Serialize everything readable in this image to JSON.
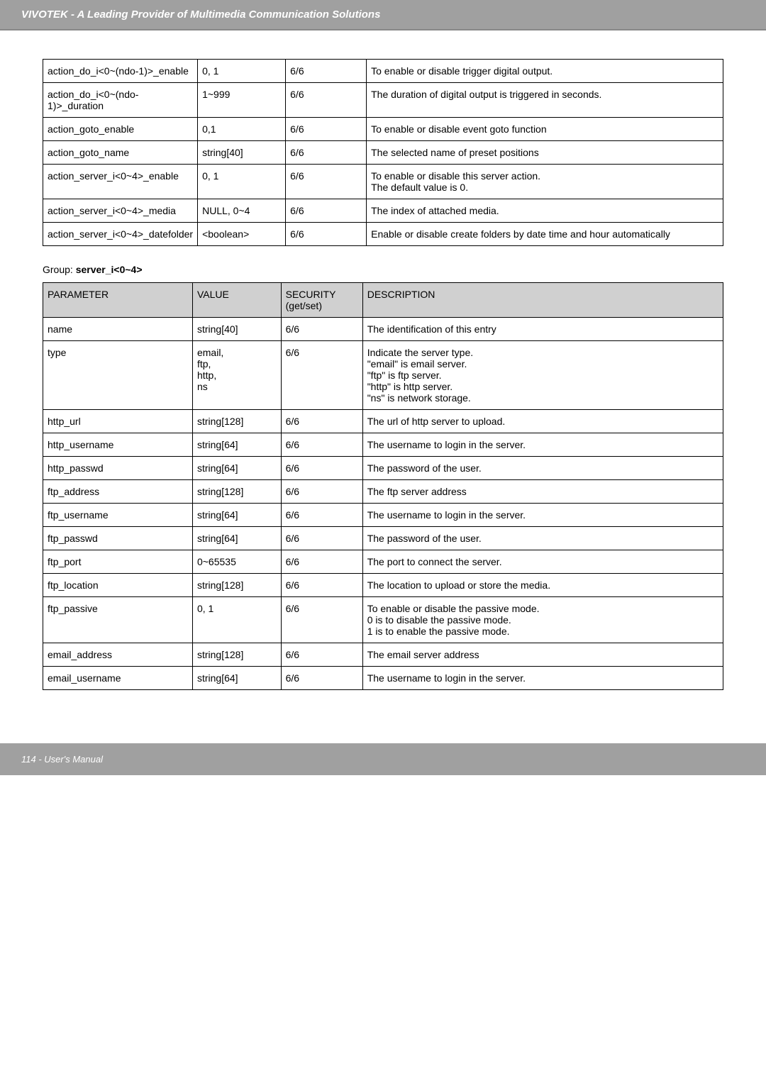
{
  "header": {
    "title": "VIVOTEK - A Leading Provider of Multimedia Communication Solutions"
  },
  "table1": {
    "rows": [
      {
        "param": "action_do_i<0~(ndo-1)>_enable",
        "value": "0, 1",
        "security": "6/6",
        "desc": "To enable or disable trigger digital output."
      },
      {
        "param": "action_do_i<0~(ndo-1)>_duration",
        "value": "1~999",
        "security": "6/6",
        "desc": "The duration of digital output is triggered in seconds."
      },
      {
        "param": "action_goto_enable",
        "value": "0,1",
        "security": "6/6",
        "desc": "To enable or disable event goto function"
      },
      {
        "param": "action_goto_name",
        "value": "string[40]",
        "security": "6/6",
        "desc": "The selected name of preset positions"
      },
      {
        "param": "action_server_i<0~4>_enable",
        "value": "0, 1",
        "security": "6/6",
        "desc": "To enable or disable this server action.\nThe default value is 0."
      },
      {
        "param": "action_server_i<0~4>_media",
        "value": "NULL, 0~4",
        "security": "6/6",
        "desc": "The index of attached media."
      },
      {
        "param": "action_server_i<0~4>_datefolder",
        "value": "<boolean>",
        "security": "6/6",
        "desc": "Enable or disable create folders by date time and hour automatically"
      }
    ]
  },
  "group_label": {
    "prefix": "Group: ",
    "name": "server_i<0~4>"
  },
  "table2": {
    "headers": {
      "param": "PARAMETER",
      "value": "VALUE",
      "security": "SECURITY (get/set)",
      "desc": "DESCRIPTION"
    },
    "rows": [
      {
        "param": "name",
        "value": "string[40]",
        "security": "6/6",
        "desc": "The identification of this entry"
      },
      {
        "param": "type",
        "value": "email,\nftp,\nhttp,\nns",
        "security": "6/6",
        "desc": "Indicate the server type.\n\"email\" is email server.\n\"ftp\" is ftp server.\n\"http\" is http server.\n\"ns\" is network storage."
      },
      {
        "param": "http_url",
        "value": "string[128]",
        "security": "6/6",
        "desc": "The url of http server to upload."
      },
      {
        "param": "http_username",
        "value": "string[64]",
        "security": "6/6",
        "desc": "The username to login in the server."
      },
      {
        "param": "http_passwd",
        "value": "string[64]",
        "security": "6/6",
        "desc": "The password of the user."
      },
      {
        "param": "ftp_address",
        "value": "string[128]",
        "security": "6/6",
        "desc": "The ftp server address"
      },
      {
        "param": "ftp_username",
        "value": "string[64]",
        "security": "6/6",
        "desc": "The username to login in the server."
      },
      {
        "param": "ftp_passwd",
        "value": "string[64]",
        "security": "6/6",
        "desc": "The password of the user."
      },
      {
        "param": "ftp_port",
        "value": "0~65535",
        "security": "6/6",
        "desc": "The port to connect the server."
      },
      {
        "param": "ftp_location",
        "value": "string[128]",
        "security": "6/6",
        "desc": "The location to upload or store the media."
      },
      {
        "param": "ftp_passive",
        "value": "0, 1",
        "security": "6/6",
        "desc": "To enable or disable the passive mode.\n0 is to disable the passive mode.\n1 is to enable the passive mode."
      },
      {
        "param": "email_address",
        "value": "string[128]",
        "security": "6/6",
        "desc": "The email server address"
      },
      {
        "param": "email_username",
        "value": "string[64]",
        "security": "6/6",
        "desc": "The username to login in the server."
      }
    ]
  },
  "footer": {
    "text": "114 - User's Manual"
  }
}
